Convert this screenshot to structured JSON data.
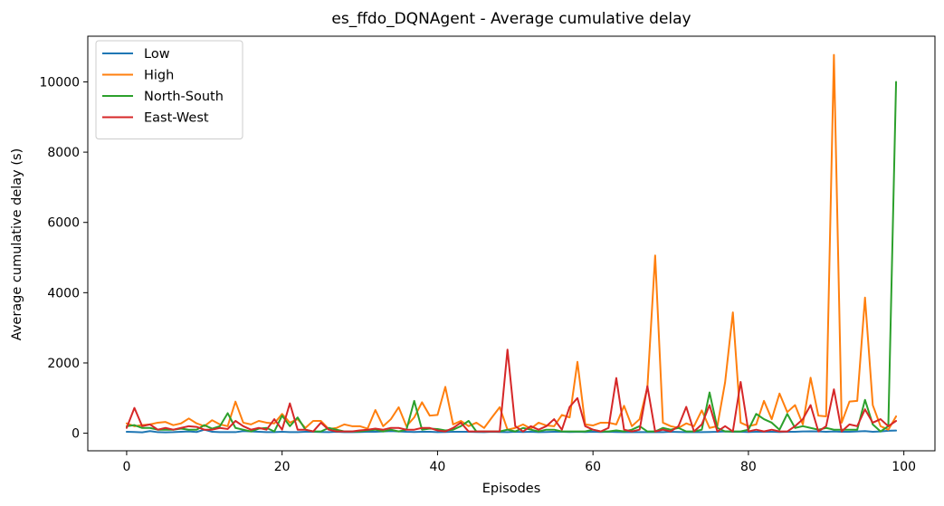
{
  "chart_data": {
    "type": "line",
    "title": "es_ffdo_DQNAgent - Average cumulative delay",
    "xlabel": "Episodes",
    "ylabel": "Average cumulative delay (s)",
    "xlim": [
      -5,
      104
    ],
    "ylim": [
      -500,
      11300
    ],
    "xticks": [
      0,
      20,
      40,
      60,
      80,
      100
    ],
    "yticks": [
      0,
      2000,
      4000,
      6000,
      8000,
      10000
    ],
    "grid": false,
    "legend_position": "top-left",
    "x": [
      0,
      1,
      2,
      3,
      4,
      5,
      6,
      7,
      8,
      9,
      10,
      11,
      12,
      13,
      14,
      15,
      16,
      17,
      18,
      19,
      20,
      21,
      22,
      23,
      24,
      25,
      26,
      27,
      28,
      29,
      30,
      31,
      32,
      33,
      34,
      35,
      36,
      37,
      38,
      39,
      40,
      41,
      42,
      43,
      44,
      45,
      46,
      47,
      48,
      49,
      50,
      51,
      52,
      53,
      54,
      55,
      56,
      57,
      58,
      59,
      60,
      61,
      62,
      63,
      64,
      65,
      66,
      67,
      68,
      69,
      70,
      71,
      72,
      73,
      74,
      75,
      76,
      77,
      78,
      79,
      80,
      81,
      82,
      83,
      84,
      85,
      86,
      87,
      88,
      89,
      90,
      91,
      92,
      93,
      94,
      95,
      96,
      97,
      98,
      99
    ],
    "series": [
      {
        "name": "Low",
        "color": "#1f77b4",
        "values": [
          40,
          35,
          25,
          60,
          30,
          25,
          30,
          40,
          50,
          35,
          100,
          40,
          30,
          30,
          30,
          60,
          50,
          40,
          30,
          30,
          40,
          30,
          30,
          40,
          40,
          35,
          30,
          40,
          30,
          30,
          35,
          40,
          40,
          50,
          60,
          50,
          40,
          35,
          40,
          40,
          30,
          35,
          40,
          40,
          40,
          35,
          30,
          40,
          35,
          30,
          40,
          35,
          40,
          30,
          35,
          40,
          40,
          35,
          40,
          35,
          40,
          35,
          40,
          35,
          30,
          30,
          30,
          30,
          30,
          30,
          40,
          35,
          30,
          30,
          30,
          35,
          40,
          50,
          40,
          40,
          35,
          40,
          40,
          40,
          35,
          40,
          40,
          50,
          55,
          50,
          40,
          50,
          40,
          40,
          50,
          60,
          40,
          50,
          70,
          75
        ]
      },
      {
        "name": "High",
        "color": "#ff7f0e",
        "values": [
          280,
          200,
          230,
          250,
          300,
          320,
          230,
          280,
          420,
          280,
          200,
          370,
          250,
          200,
          900,
          300,
          250,
          350,
          300,
          280,
          550,
          300,
          400,
          150,
          350,
          350,
          120,
          150,
          250,
          200,
          200,
          130,
          660,
          200,
          400,
          740,
          200,
          450,
          880,
          500,
          520,
          1320,
          250,
          350,
          200,
          300,
          150,
          450,
          740,
          100,
          150,
          250,
          130,
          300,
          220,
          200,
          520,
          450,
          2030,
          250,
          220,
          300,
          300,
          250,
          780,
          200,
          400,
          1300,
          5060,
          300,
          200,
          150,
          280,
          200,
          650,
          150,
          200,
          1450,
          3440,
          300,
          200,
          250,
          920,
          400,
          1130,
          600,
          800,
          250,
          1580,
          500,
          480,
          10770,
          300,
          900,
          920,
          3860,
          800,
          200,
          100,
          480
        ]
      },
      {
        "name": "North-South",
        "color": "#2ca02c",
        "values": [
          200,
          230,
          150,
          150,
          100,
          100,
          100,
          130,
          100,
          100,
          230,
          130,
          200,
          570,
          150,
          100,
          50,
          130,
          150,
          50,
          500,
          200,
          450,
          100,
          50,
          50,
          150,
          100,
          50,
          50,
          50,
          80,
          100,
          50,
          100,
          50,
          100,
          920,
          100,
          130,
          120,
          80,
          100,
          200,
          350,
          50,
          50,
          50,
          50,
          100,
          50,
          150,
          100,
          50,
          100,
          100,
          50,
          50,
          50,
          50,
          100,
          50,
          50,
          80,
          50,
          100,
          200,
          50,
          50,
          150,
          100,
          150,
          50,
          50,
          100,
          1160,
          150,
          50,
          50,
          50,
          100,
          550,
          400,
          300,
          100,
          550,
          150,
          200,
          150,
          100,
          150,
          100,
          100,
          100,
          100,
          950,
          250,
          50,
          200,
          10000
        ]
      },
      {
        "name": "East-West",
        "color": "#d62728",
        "values": [
          150,
          720,
          200,
          250,
          100,
          150,
          100,
          150,
          200,
          180,
          100,
          100,
          150,
          120,
          350,
          200,
          100,
          150,
          100,
          400,
          100,
          850,
          100,
          100,
          50,
          300,
          100,
          50,
          50,
          50,
          80,
          100,
          130,
          100,
          150,
          150,
          100,
          100,
          150,
          150,
          80,
          50,
          150,
          300,
          50,
          50,
          50,
          50,
          50,
          2380,
          200,
          50,
          200,
          100,
          200,
          400,
          100,
          750,
          1000,
          200,
          100,
          50,
          150,
          1570,
          100,
          50,
          100,
          1340,
          50,
          100,
          50,
          200,
          750,
          50,
          250,
          800,
          50,
          200,
          50,
          1460,
          50,
          100,
          50,
          100,
          50,
          50,
          200,
          400,
          800,
          50,
          200,
          1250,
          50,
          250,
          200,
          680,
          300,
          400,
          200,
          350
        ]
      }
    ]
  }
}
